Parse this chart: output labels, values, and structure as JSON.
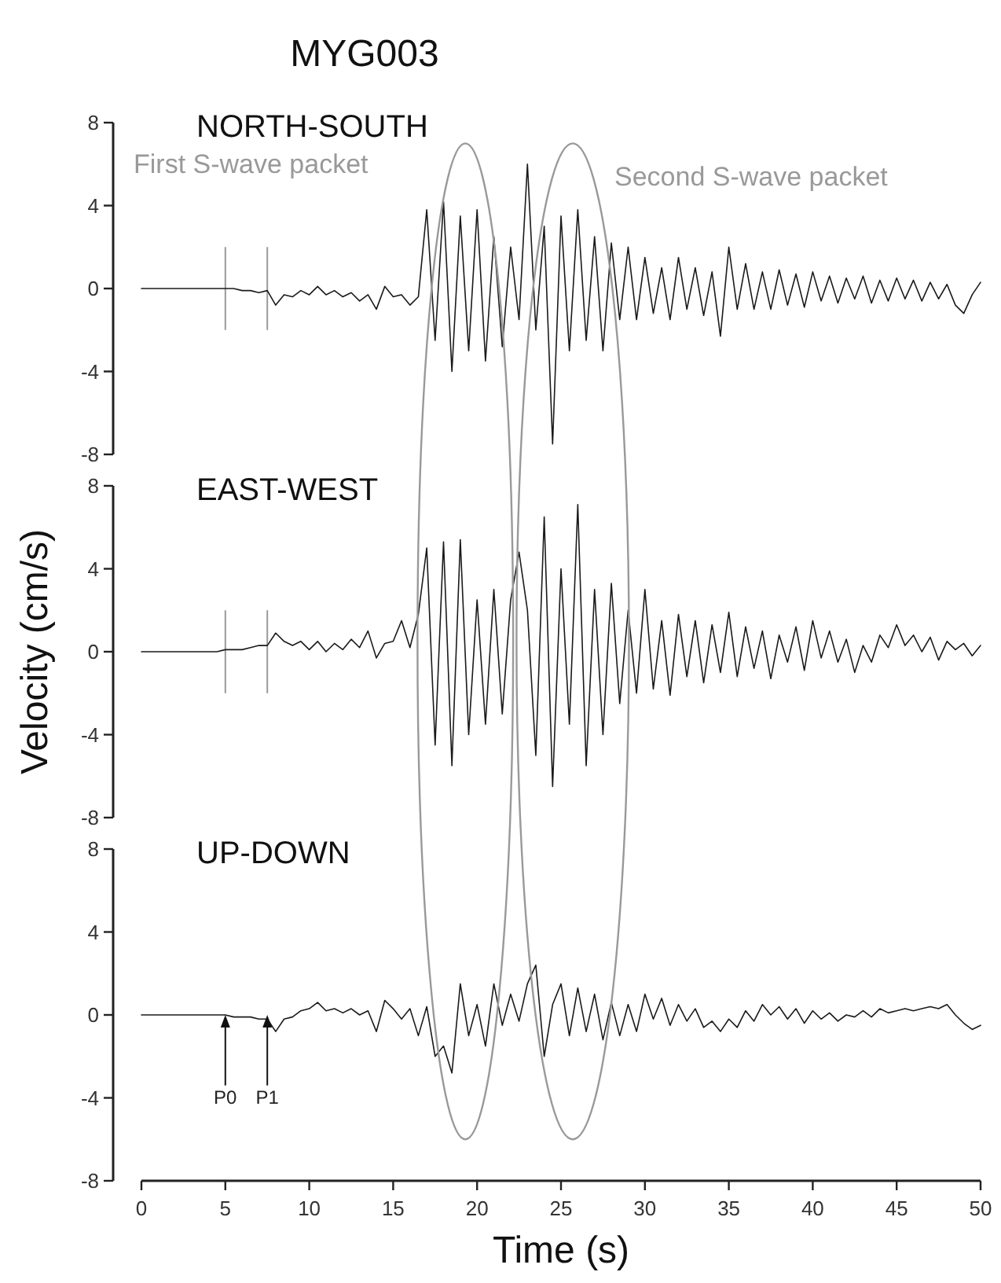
{
  "chart_data": [
    {
      "type": "line",
      "title": "MYG003",
      "subtitle": "NORTH-SOUTH",
      "annotations": [
        "First S-wave packet",
        "Second S-wave packet"
      ],
      "x": [
        0,
        0.5,
        1,
        1.5,
        2,
        2.5,
        3,
        3.5,
        4,
        4.5,
        5,
        5.5,
        6,
        6.5,
        7,
        7.5,
        8,
        8.5,
        9,
        9.5,
        10,
        10.5,
        11,
        11.5,
        12,
        12.5,
        13,
        13.5,
        14,
        14.5,
        15,
        15.5,
        16,
        16.5,
        17,
        17.5,
        18,
        18.5,
        19,
        19.5,
        20,
        20.5,
        21,
        21.5,
        22,
        22.5,
        23,
        23.5,
        24,
        24.5,
        25,
        25.5,
        26,
        26.5,
        27,
        27.5,
        28,
        28.5,
        29,
        29.5,
        30,
        30.5,
        31,
        31.5,
        32,
        32.5,
        33,
        33.5,
        34,
        34.5,
        35,
        35.5,
        36,
        36.5,
        37,
        37.5,
        38,
        38.5,
        39,
        39.5,
        40,
        40.5,
        41,
        41.5,
        42,
        42.5,
        43,
        43.5,
        44,
        44.5,
        45,
        45.5,
        46,
        46.5,
        47,
        47.5,
        48,
        48.5,
        49,
        49.5,
        50
      ],
      "values": [
        0,
        0,
        0,
        0,
        0,
        0,
        0,
        0,
        0,
        0,
        0,
        0,
        -0.1,
        -0.1,
        -0.2,
        -0.1,
        -0.8,
        -0.3,
        -0.4,
        -0.1,
        -0.3,
        0.1,
        -0.3,
        -0.1,
        -0.4,
        -0.2,
        -0.6,
        -0.3,
        -1.0,
        0.1,
        -0.4,
        -0.3,
        -0.8,
        -0.4,
        3.8,
        -2.5,
        4.2,
        -4.0,
        3.5,
        -3.0,
        3.8,
        -3.5,
        2.5,
        -2.8,
        2.0,
        -1.5,
        6.0,
        -2.0,
        3.0,
        -7.5,
        3.5,
        -3.0,
        3.8,
        -2.5,
        2.5,
        -3.0,
        2.2,
        -1.5,
        2.0,
        -1.5,
        1.5,
        -1.2,
        1.0,
        -1.5,
        1.5,
        -1.0,
        1.0,
        -1.3,
        0.8,
        -2.3,
        2.0,
        -1.0,
        1.2,
        -1.0,
        0.8,
        -1.0,
        0.9,
        -0.8,
        0.7,
        -0.9,
        0.8,
        -0.6,
        0.6,
        -0.7,
        0.5,
        -0.5,
        0.6,
        -0.7,
        0.4,
        -0.6,
        0.5,
        -0.5,
        0.4,
        -0.6,
        0.3,
        -0.5,
        0.2,
        -0.8,
        -1.2,
        -0.3,
        0.3
      ],
      "color": "#1a1a1a",
      "xlim": [
        0,
        50
      ],
      "ylim": [
        -8,
        8
      ],
      "yticks": [
        -8,
        -4,
        0,
        4,
        8
      ],
      "tick_labels": "y",
      "grid": false,
      "ref_lines": [
        {
          "axis": "x",
          "value": 5,
          "color": "#999999"
        },
        {
          "axis": "x",
          "value": 7.5,
          "color": "#999999"
        }
      ]
    },
    {
      "type": "line",
      "subtitle": "EAST-WEST",
      "ylabel": "Velocity (cm/s)",
      "x": [
        0,
        0.5,
        1,
        1.5,
        2,
        2.5,
        3,
        3.5,
        4,
        4.5,
        5,
        5.5,
        6,
        6.5,
        7,
        7.5,
        8,
        8.5,
        9,
        9.5,
        10,
        10.5,
        11,
        11.5,
        12,
        12.5,
        13,
        13.5,
        14,
        14.5,
        15,
        15.5,
        16,
        16.5,
        17,
        17.5,
        18,
        18.5,
        19,
        19.5,
        20,
        20.5,
        21,
        21.5,
        22,
        22.5,
        23,
        23.5,
        24,
        24.5,
        25,
        25.5,
        26,
        26.5,
        27,
        27.5,
        28,
        28.5,
        29,
        29.5,
        30,
        30.5,
        31,
        31.5,
        32,
        32.5,
        33,
        33.5,
        34,
        34.5,
        35,
        35.5,
        36,
        36.5,
        37,
        37.5,
        38,
        38.5,
        39,
        39.5,
        40,
        40.5,
        41,
        41.5,
        42,
        42.5,
        43,
        43.5,
        44,
        44.5,
        45,
        45.5,
        46,
        46.5,
        47,
        47.5,
        48,
        48.5,
        49,
        49.5,
        50
      ],
      "values": [
        0,
        0,
        0,
        0,
        0,
        0,
        0,
        0,
        0,
        0,
        0.1,
        0.1,
        0.1,
        0.2,
        0.3,
        0.3,
        0.9,
        0.5,
        0.3,
        0.5,
        0.1,
        0.5,
        0.0,
        0.4,
        0.1,
        0.6,
        0.2,
        1.0,
        -0.3,
        0.4,
        0.5,
        1.5,
        0.2,
        1.8,
        5.0,
        -4.5,
        5.3,
        -5.5,
        5.4,
        -4.0,
        2.5,
        -3.5,
        3.0,
        -3.0,
        2.5,
        4.8,
        2.0,
        -5.0,
        6.5,
        -6.5,
        4.0,
        -3.5,
        7.1,
        -5.5,
        3.0,
        -4.0,
        3.3,
        -2.5,
        2.0,
        -2.0,
        3.0,
        -1.8,
        1.5,
        -2.1,
        1.8,
        -1.2,
        1.5,
        -1.5,
        1.3,
        -1.0,
        1.9,
        -1.2,
        1.2,
        -0.8,
        1.0,
        -1.3,
        0.8,
        -0.5,
        1.2,
        -0.9,
        1.5,
        -0.3,
        1.0,
        -0.5,
        0.6,
        -1.0,
        0.3,
        -0.5,
        0.8,
        0.2,
        1.3,
        0.3,
        0.8,
        0.0,
        0.7,
        -0.4,
        0.5,
        0.1,
        0.4,
        -0.2,
        0.3
      ],
      "color": "#1a1a1a",
      "xlim": [
        0,
        50
      ],
      "ylim": [
        -8,
        8
      ],
      "yticks": [
        -8,
        -4,
        0,
        4,
        8
      ],
      "tick_labels": "y",
      "grid": false,
      "ref_lines": [
        {
          "axis": "x",
          "value": 5,
          "color": "#999999"
        },
        {
          "axis": "x",
          "value": 7.5,
          "color": "#999999"
        }
      ]
    },
    {
      "type": "line",
      "subtitle": "UP-DOWN",
      "xlabel": "Time (s)",
      "annotations": [
        {
          "text": "P0",
          "x": 5,
          "y": 0
        },
        {
          "text": "P1",
          "x": 7.5,
          "y": 0
        }
      ],
      "x": [
        0,
        0.5,
        1,
        1.5,
        2,
        2.5,
        3,
        3.5,
        4,
        4.5,
        5,
        5.5,
        6,
        6.5,
        7,
        7.5,
        8,
        8.5,
        9,
        9.5,
        10,
        10.5,
        11,
        11.5,
        12,
        12.5,
        13,
        13.5,
        14,
        14.5,
        15,
        15.5,
        16,
        16.5,
        17,
        17.5,
        18,
        18.5,
        19,
        19.5,
        20,
        20.5,
        21,
        21.5,
        22,
        22.5,
        23,
        23.5,
        24,
        24.5,
        25,
        25.5,
        26,
        26.5,
        27,
        27.5,
        28,
        28.5,
        29,
        29.5,
        30,
        30.5,
        31,
        31.5,
        32,
        32.5,
        33,
        33.5,
        34,
        34.5,
        35,
        35.5,
        36,
        36.5,
        37,
        37.5,
        38,
        38.5,
        39,
        39.5,
        40,
        40.5,
        41,
        41.5,
        42,
        42.5,
        43,
        43.5,
        44,
        44.5,
        45,
        45.5,
        46,
        46.5,
        47,
        47.5,
        48,
        48.5,
        49,
        49.5,
        50
      ],
      "values": [
        0,
        0,
        0,
        0,
        0,
        0,
        0,
        0,
        0,
        0,
        0,
        -0.1,
        -0.1,
        -0.1,
        -0.2,
        -0.2,
        -0.8,
        -0.2,
        -0.1,
        0.2,
        0.3,
        0.6,
        0.2,
        0.3,
        0.1,
        0.3,
        0.0,
        0.2,
        -0.8,
        0.7,
        0.3,
        -0.2,
        0.3,
        -1.0,
        0.4,
        -2.0,
        -1.5,
        -2.8,
        1.5,
        -1.0,
        0.5,
        -1.5,
        1.5,
        -0.5,
        1.0,
        -0.3,
        1.5,
        2.4,
        -2.0,
        0.5,
        1.5,
        -1.0,
        1.3,
        -0.8,
        1.0,
        -1.2,
        0.6,
        -1.0,
        0.5,
        -0.8,
        1.0,
        -0.2,
        0.8,
        -0.5,
        0.5,
        -0.3,
        0.3,
        -0.6,
        -0.3,
        -0.8,
        -0.2,
        -0.6,
        0.2,
        -0.3,
        0.5,
        0.0,
        0.4,
        -0.2,
        0.3,
        -0.4,
        0.2,
        -0.2,
        0.1,
        -0.3,
        0.0,
        -0.1,
        0.2,
        -0.1,
        0.3,
        0.1,
        0.2,
        0.3,
        0.2,
        0.3,
        0.4,
        0.3,
        0.5,
        0.0,
        -0.4,
        -0.7,
        -0.5
      ],
      "color": "#1a1a1a",
      "xlim": [
        0,
        50
      ],
      "xticks": [
        0,
        5,
        10,
        15,
        20,
        25,
        30,
        35,
        40,
        45,
        50
      ],
      "ylim": [
        -8,
        8
      ],
      "yticks": [
        -8,
        -4,
        0,
        4,
        8
      ],
      "grid": false
    }
  ]
}
